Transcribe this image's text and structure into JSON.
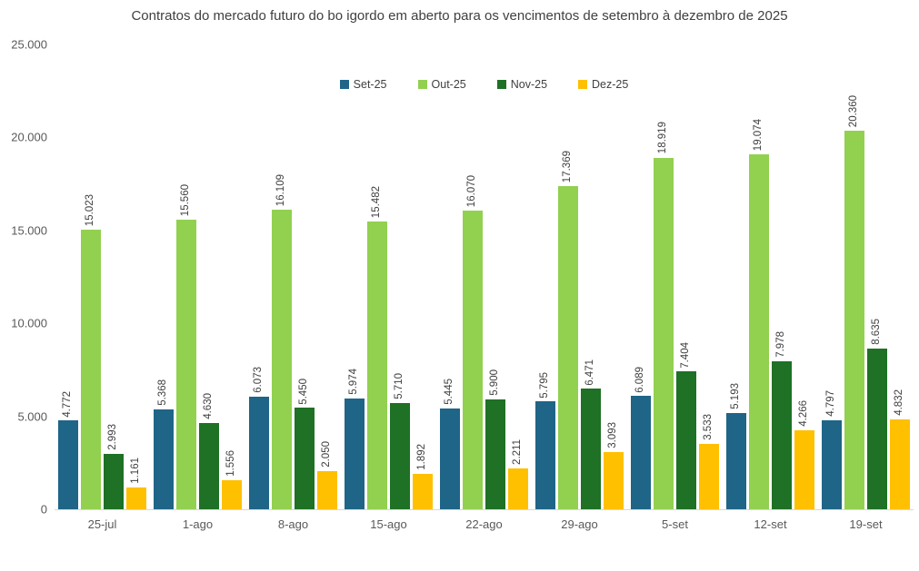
{
  "title": "Contratos do mercado futuro do bo igordo em aberto para os vencimentos de setembro à dezembro de 2025",
  "chart_data": {
    "type": "bar",
    "title": "Contratos do mercado futuro do bo igordo em aberto para os vencimentos de setembro à dezembro de 2025",
    "categories": [
      "25-jul",
      "1-ago",
      "8-ago",
      "15-ago",
      "22-ago",
      "29-ago",
      "5-set",
      "12-set",
      "19-set"
    ],
    "series": [
      {
        "name": "Set-25",
        "color": "#1F6587",
        "values": [
          4772,
          5368,
          6073,
          5974,
          5445,
          5795,
          6089,
          5193,
          4797
        ],
        "labels": [
          "4.772",
          "5.368",
          "6.073",
          "5.974",
          "5.445",
          "5.795",
          "6.089",
          "5.193",
          "4.797"
        ]
      },
      {
        "name": "Out-25",
        "color": "#92D050",
        "values": [
          15023,
          15560,
          16109,
          15482,
          16070,
          17369,
          18919,
          19074,
          20360
        ],
        "labels": [
          "15.023",
          "15.560",
          "16.109",
          "15.482",
          "16.070",
          "17.369",
          "18.919",
          "19.074",
          "20.360"
        ]
      },
      {
        "name": "Nov-25",
        "color": "#1E7125",
        "values": [
          2993,
          4630,
          5450,
          5710,
          5900,
          6471,
          7404,
          7978,
          8635
        ],
        "labels": [
          "2.993",
          "4.630",
          "5.450",
          "5.710",
          "5.900",
          "6.471",
          "7.404",
          "7.978",
          "8.635"
        ]
      },
      {
        "name": "Dez-25",
        "color": "#FFC000",
        "values": [
          1161,
          1556,
          2050,
          1892,
          2211,
          3093,
          3533,
          4266,
          4832
        ],
        "labels": [
          "1.161",
          "1.556",
          "2.050",
          "1.892",
          "2.211",
          "3.093",
          "3.533",
          "4.266",
          "4.832"
        ]
      }
    ],
    "xlabel": "",
    "ylabel": "",
    "ylim": [
      0,
      25000
    ],
    "y_ticks": {
      "values": [
        25000,
        20000,
        15000,
        10000,
        5000,
        0
      ],
      "labels": [
        "25.000",
        "20.000",
        "15.000",
        "10.000",
        "5.000",
        "0"
      ]
    },
    "grid": false,
    "legend_position": "top-center",
    "data_labels_rotation": 90
  }
}
